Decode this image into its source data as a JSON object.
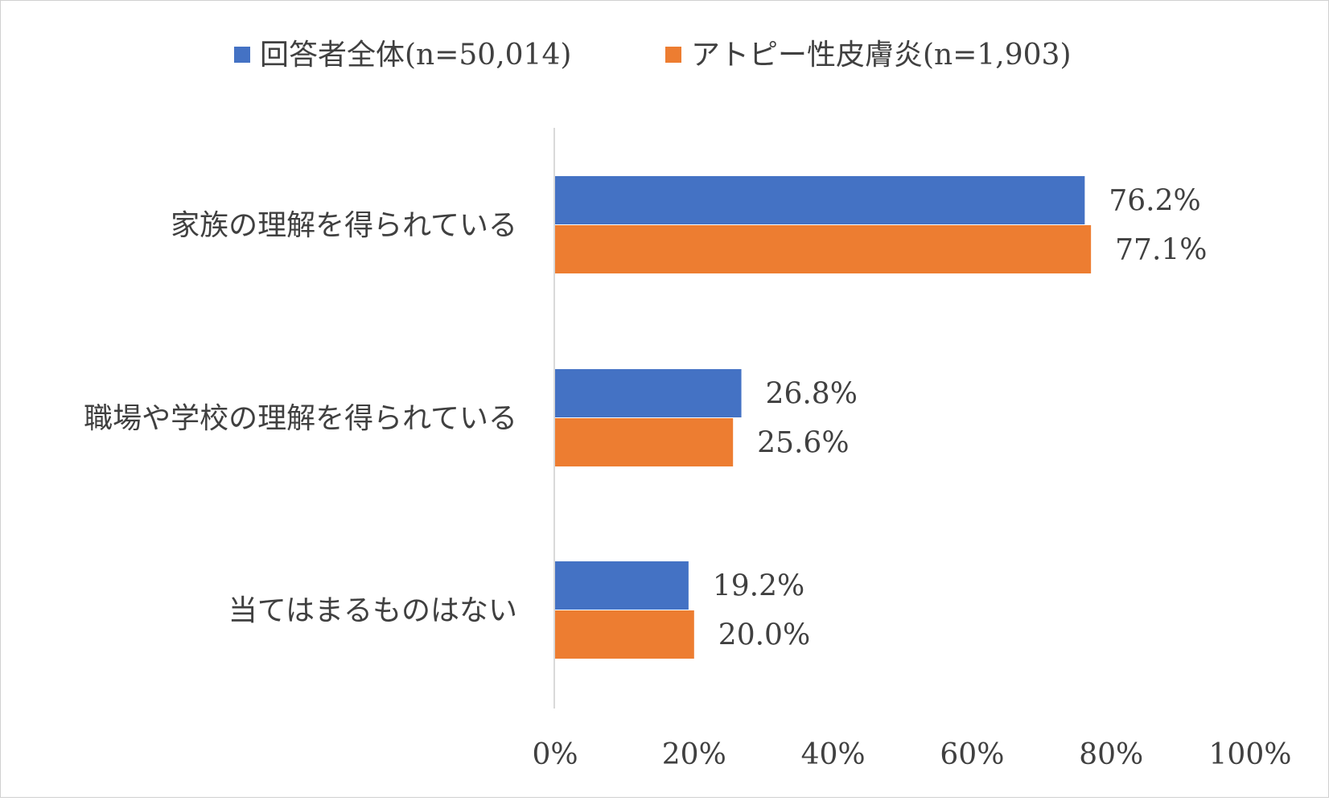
{
  "chart_data": {
    "type": "bar",
    "orientation": "horizontal",
    "categories": [
      "家族の理解を得られている",
      "職場や学校の理解を得られている",
      "当てはまるものはない"
    ],
    "series": [
      {
        "name": "回答者全体(n=50,014)",
        "values": [
          76.2,
          26.8,
          19.2
        ],
        "labels": [
          "76.2%",
          "26.8%",
          "19.2%"
        ],
        "color": "#4472C4"
      },
      {
        "name": "アトピー性皮膚炎(n=1,903)",
        "values": [
          77.1,
          25.6,
          20.0
        ],
        "labels": [
          "77.1%",
          "25.6%",
          "20.0%"
        ],
        "color": "#ED7D31"
      }
    ],
    "x_ticks": [
      "0%",
      "20%",
      "40%",
      "60%",
      "80%",
      "100%"
    ],
    "xlim": [
      0,
      100
    ],
    "grid": false,
    "legend_position": "top"
  }
}
